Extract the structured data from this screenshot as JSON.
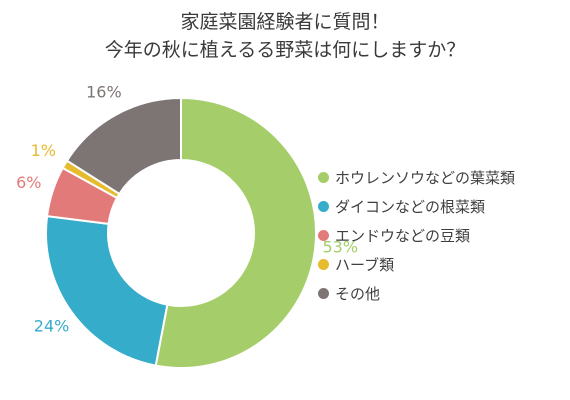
{
  "chart_data": {
    "type": "pie",
    "title": "家庭菜園経験者に質問！",
    "subtitle": "今年の秋に植えるる野菜は何にしますか？",
    "slices": [
      {
        "name": "ホウレンソウなどの葉菜類",
        "value": 53,
        "label": "53%",
        "color": "#a5cd69"
      },
      {
        "name": "ダイコンなどの根菜類",
        "value": 24,
        "label": "24%",
        "color": "#35acc9"
      },
      {
        "name": "エンドウなどの豆類",
        "value": 6,
        "label": "6%",
        "color": "#e37a7a"
      },
      {
        "name": "ハーブ類",
        "value": 1,
        "label": "1%",
        "color": "#e6bb2e"
      },
      {
        "name": "その他",
        "value": 16,
        "label": "16%",
        "color": "#7d7573"
      }
    ],
    "legend_position": "right"
  }
}
